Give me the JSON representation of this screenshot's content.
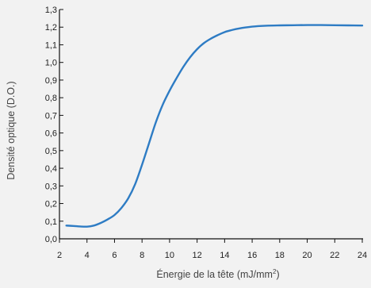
{
  "chart_data": {
    "type": "line",
    "xlabel": "Énergie de la tête (mJ/mm",
    "xlabel_sup": "2",
    "xlabel_close": ")",
    "ylabel": "Densité optique (D.O.)",
    "xlim": [
      2,
      24
    ],
    "ylim": [
      0.0,
      1.3
    ],
    "x_ticks": [
      "2",
      "4",
      "6",
      "8",
      "10",
      "12",
      "14",
      "16",
      "18",
      "20",
      "22",
      "24"
    ],
    "y_ticks": [
      "0,0",
      "0,1",
      "0,2",
      "0,3",
      "0,4",
      "0,5",
      "0,6",
      "0,7",
      "0,8",
      "0,9",
      "1,0",
      "1,1",
      "1,2",
      "1,3"
    ],
    "grid": false,
    "series": [
      {
        "color": "#2e7cc4",
        "x": [
          2.5,
          3.0,
          3.5,
          4.0,
          4.5,
          5.0,
          5.5,
          6.0,
          6.5,
          7.0,
          7.5,
          8.0,
          8.5,
          9.0,
          9.5,
          10.0,
          10.5,
          11.0,
          11.5,
          12.0,
          12.5,
          13.0,
          13.5,
          14.0,
          14.5,
          15.0,
          16.0,
          17.0,
          18.0,
          19.0,
          20.0,
          21.0,
          22.0,
          23.0,
          24.0
        ],
        "y": [
          0.075,
          0.073,
          0.07,
          0.069,
          0.075,
          0.09,
          0.11,
          0.135,
          0.175,
          0.23,
          0.31,
          0.42,
          0.54,
          0.66,
          0.76,
          0.84,
          0.91,
          0.975,
          1.03,
          1.075,
          1.11,
          1.135,
          1.155,
          1.172,
          1.183,
          1.192,
          1.203,
          1.208,
          1.21,
          1.211,
          1.212,
          1.212,
          1.211,
          1.21,
          1.209
        ]
      }
    ]
  }
}
